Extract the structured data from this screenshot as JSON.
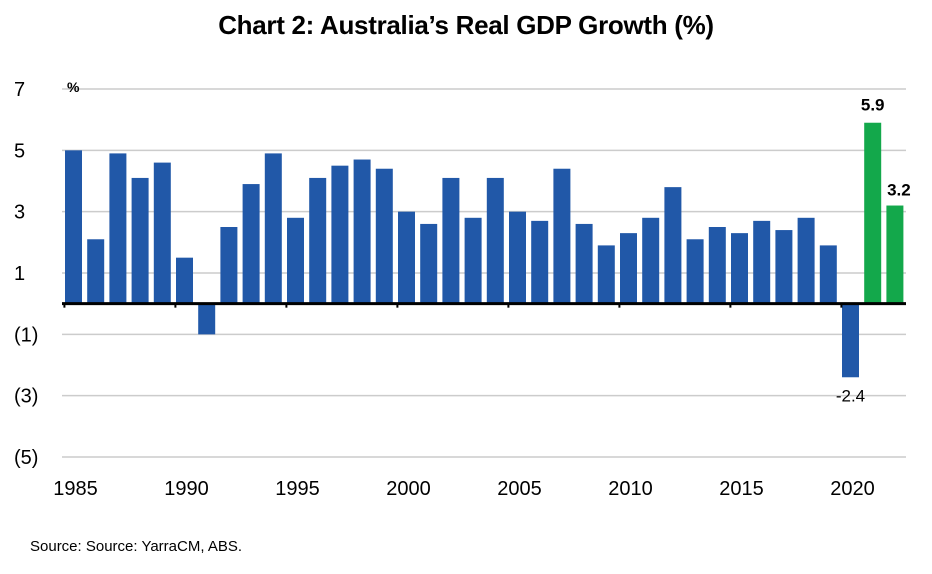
{
  "title": "Chart 2: Australia’s Real GDP Growth (%)",
  "source": "Source: Source: YarraCM, ABS.",
  "colors": {
    "actual": "#2158A8",
    "forecast": "#13A84B",
    "grid": "#cccccc",
    "axis": "#000000"
  },
  "chart_data": {
    "type": "bar",
    "title": "Chart 2: Australia’s Real GDP Growth (%)",
    "ylabel": "%",
    "xlabel": "",
    "ylim": [
      -5,
      7
    ],
    "yticks": [
      7,
      5,
      3,
      1,
      -1,
      -3,
      -5
    ],
    "ytick_labels": [
      "7",
      "5",
      "3",
      "1",
      "(1)",
      "(3)",
      "(5)"
    ],
    "xticks": [
      1985,
      1990,
      1995,
      2000,
      2005,
      2010,
      2015,
      2020
    ],
    "xtick_labels": [
      "1985",
      "1990",
      "1995",
      "2000",
      "2005",
      "2010",
      "2015",
      "2020"
    ],
    "grid": true,
    "categories": [
      1985,
      1986,
      1987,
      1988,
      1989,
      1990,
      1991,
      1992,
      1993,
      1994,
      1995,
      1996,
      1997,
      1998,
      1999,
      2000,
      2001,
      2002,
      2003,
      2004,
      2005,
      2006,
      2007,
      2008,
      2009,
      2010,
      2011,
      2012,
      2013,
      2014,
      2015,
      2016,
      2017,
      2018,
      2019,
      2020,
      2021,
      2022
    ],
    "series": [
      {
        "values": [
          5.0,
          2.1,
          4.9,
          4.1,
          4.6,
          1.5,
          -1.0,
          2.5,
          3.9,
          4.9,
          2.8,
          4.1,
          4.5,
          4.7,
          4.4,
          3.0,
          2.6,
          4.1,
          2.8,
          4.1,
          3.0,
          2.7,
          4.4,
          2.6,
          1.9,
          2.3,
          2.8,
          3.8,
          2.1,
          2.5,
          2.3,
          2.7,
          2.4,
          2.8,
          1.9,
          -2.4,
          5.9,
          3.2
        ],
        "kind": [
          "actual",
          "actual",
          "actual",
          "actual",
          "actual",
          "actual",
          "actual",
          "actual",
          "actual",
          "actual",
          "actual",
          "actual",
          "actual",
          "actual",
          "actual",
          "actual",
          "actual",
          "actual",
          "actual",
          "actual",
          "actual",
          "actual",
          "actual",
          "actual",
          "actual",
          "actual",
          "actual",
          "actual",
          "actual",
          "actual",
          "actual",
          "actual",
          "actual",
          "actual",
          "actual",
          "actual",
          "forecast",
          "forecast"
        ]
      }
    ],
    "data_labels": [
      {
        "category": 2020,
        "text": "-2.4"
      },
      {
        "category": 2021,
        "text": "5.9"
      },
      {
        "category": 2022,
        "text": "3.2"
      }
    ]
  }
}
